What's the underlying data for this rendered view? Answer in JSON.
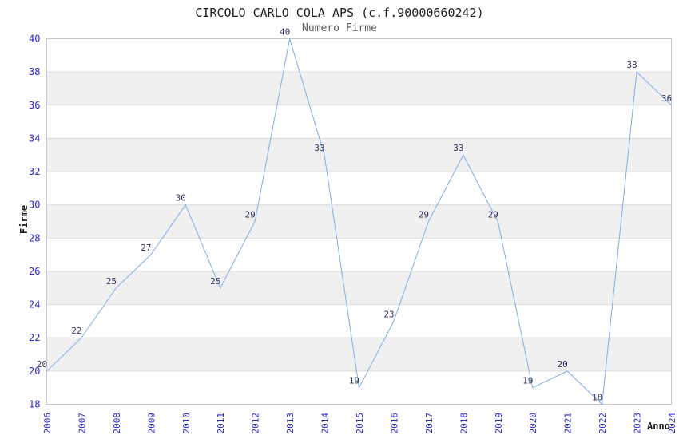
{
  "page": {
    "background": "#ffffff"
  },
  "chart_data": {
    "type": "line",
    "title": "CIRCOLO CARLO COLA APS (c.f.90000660242)",
    "subtitle": "Numero Firme",
    "xlabel": "Anno",
    "ylabel": "Firme",
    "x": [
      2006,
      2007,
      2008,
      2009,
      2010,
      2011,
      2012,
      2013,
      2014,
      2015,
      2016,
      2017,
      2018,
      2019,
      2020,
      2021,
      2022,
      2023,
      2024
    ],
    "series": [
      {
        "name": "Numero Firme",
        "values": [
          20,
          22,
          25,
          27,
          30,
          25,
          29,
          40,
          33,
          19,
          23,
          29,
          33,
          29,
          19,
          20,
          18,
          38,
          36
        ]
      }
    ],
    "ylim": [
      18,
      40
    ],
    "ytick_step": 2,
    "xtick_rotation": -90,
    "data_labels_visible": true,
    "legend": "none",
    "grid": "alternating horizontal gray bands every 2 units",
    "colors": {
      "line": "#7facea",
      "data_label": "#333366",
      "tick_label": "#2929cc",
      "band": "#f0f0f0",
      "band_edge": "#dcdcdc",
      "plot_border": "#c6c6c6",
      "title": "#202020",
      "subtitle": "#5a5a5a",
      "axis_title": "#1a1a1a"
    }
  }
}
